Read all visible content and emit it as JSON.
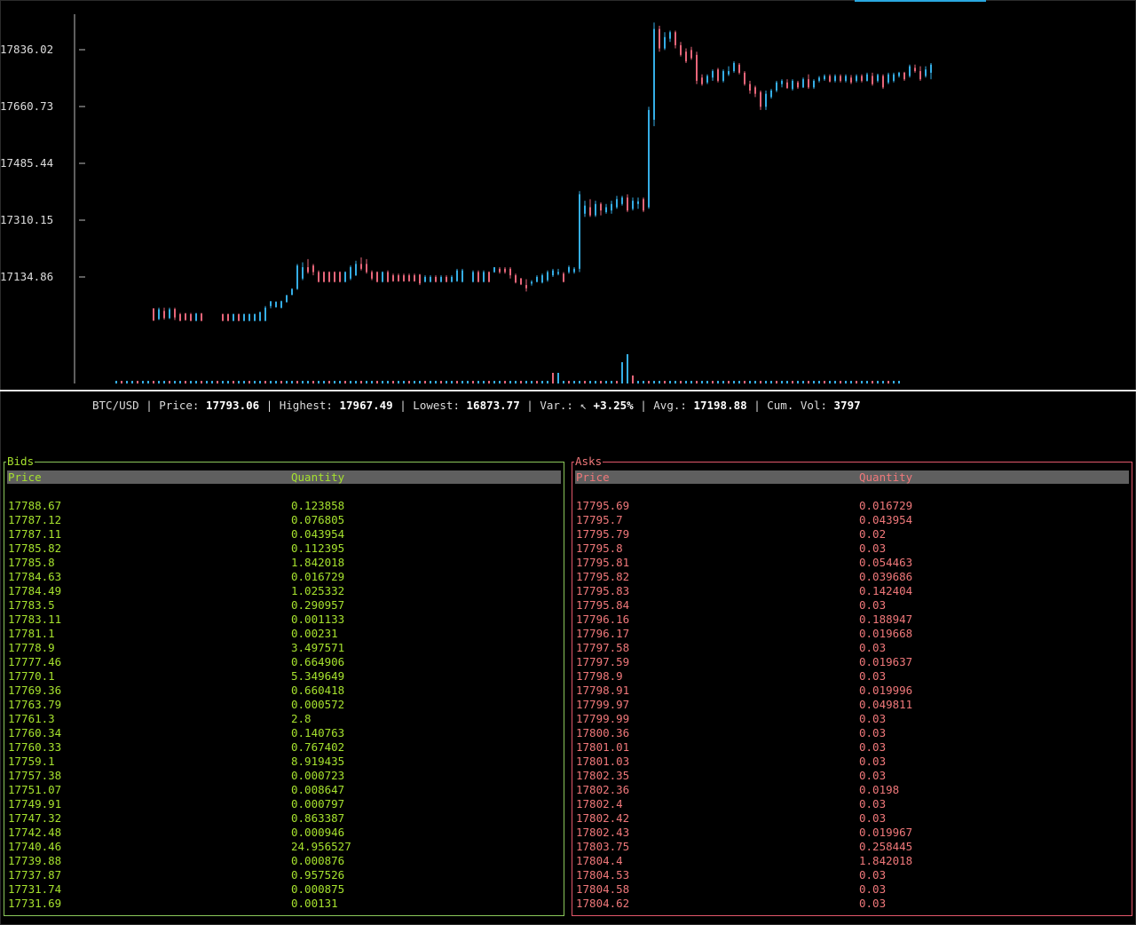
{
  "chart_data": {
    "type": "candlestick",
    "y_ticks": [
      "17836.02",
      "17660.73",
      "17485.44",
      "17310.15",
      "17134.86"
    ],
    "y_tick_values": [
      17836.02,
      17660.73,
      17485.44,
      17310.15,
      17134.86
    ],
    "colors": {
      "up": "#35aee6",
      "down": "#e8667a"
    },
    "candles": [
      {
        "o": 17038,
        "h": 17038,
        "c": 17000,
        "l": 17000
      },
      {
        "o": 17005,
        "h": 17040,
        "c": 17035,
        "l": 17002
      },
      {
        "o": 17030,
        "h": 17040,
        "c": 17008,
        "l": 17003
      },
      {
        "o": 17008,
        "h": 17040,
        "c": 17035,
        "l": 17005
      },
      {
        "o": 17036,
        "h": 17040,
        "c": 17010,
        "l": 17002
      },
      {
        "o": 17020,
        "h": 17024,
        "c": 17000,
        "l": 16998
      },
      {
        "o": 17022,
        "h": 17024,
        "c": 17002,
        "l": 17000
      },
      {
        "o": 17020,
        "h": 17024,
        "c": 17000,
        "l": 16998
      },
      {
        "o": 17000,
        "h": 17024,
        "c": 17022,
        "l": 16998
      },
      {
        "o": 17022,
        "h": 17024,
        "c": 17000,
        "l": 16998
      },
      {
        "o": null
      },
      {
        "o": null
      },
      {
        "o": null
      },
      {
        "o": 17020,
        "h": 17022,
        "c": 17000,
        "l": 16998
      },
      {
        "o": 17020,
        "h": 17022,
        "c": 17000,
        "l": 16998
      },
      {
        "o": 17000,
        "h": 17022,
        "c": 17020,
        "l": 16998
      },
      {
        "o": 17020,
        "h": 17022,
        "c": 17000,
        "l": 16998
      },
      {
        "o": 17000,
        "h": 17022,
        "c": 17020,
        "l": 16998
      },
      {
        "o": 17000,
        "h": 17022,
        "c": 17020,
        "l": 16998
      },
      {
        "o": 17000,
        "h": 17022,
        "c": 17020,
        "l": 16998
      },
      {
        "o": 17000,
        "h": 17028,
        "c": 17026,
        "l": 16998
      },
      {
        "o": 17000,
        "h": 17045,
        "c": 17040,
        "l": 16998
      },
      {
        "o": 17045,
        "h": 17060,
        "c": 17060,
        "l": 17038
      },
      {
        "o": 17042,
        "h": 17060,
        "c": 17058,
        "l": 17040
      },
      {
        "o": 17040,
        "h": 17062,
        "c": 17060,
        "l": 17038
      },
      {
        "o": 17058,
        "h": 17080,
        "c": 17078,
        "l": 17055
      },
      {
        "o": 17080,
        "h": 17100,
        "c": 17098,
        "l": 17078
      },
      {
        "o": 17098,
        "h": 17175,
        "c": 17170,
        "l": 17095
      },
      {
        "o": 17130,
        "h": 17180,
        "c": 17165,
        "l": 17125
      },
      {
        "o": 17165,
        "h": 17190,
        "c": 17150,
        "l": 17145
      },
      {
        "o": 17170,
        "h": 17175,
        "c": 17150,
        "l": 17140
      },
      {
        "o": 17150,
        "h": 17155,
        "c": 17120,
        "l": 17118
      },
      {
        "o": 17150,
        "h": 17152,
        "c": 17120,
        "l": 17118
      },
      {
        "o": 17150,
        "h": 17152,
        "c": 17120,
        "l": 17118
      },
      {
        "o": 17150,
        "h": 17152,
        "c": 17120,
        "l": 17118
      },
      {
        "o": 17150,
        "h": 17152,
        "c": 17120,
        "l": 17118
      },
      {
        "o": 17120,
        "h": 17152,
        "c": 17150,
        "l": 17118
      },
      {
        "o": 17130,
        "h": 17170,
        "c": 17165,
        "l": 17125
      },
      {
        "o": 17140,
        "h": 17185,
        "c": 17175,
        "l": 17138
      },
      {
        "o": 17175,
        "h": 17195,
        "c": 17160,
        "l": 17155
      },
      {
        "o": 17175,
        "h": 17190,
        "c": 17150,
        "l": 17145
      },
      {
        "o": 17150,
        "h": 17155,
        "c": 17130,
        "l": 17125
      },
      {
        "o": 17150,
        "h": 17152,
        "c": 17120,
        "l": 17118
      },
      {
        "o": 17120,
        "h": 17152,
        "c": 17150,
        "l": 17118
      },
      {
        "o": 17150,
        "h": 17155,
        "c": 17120,
        "l": 17118
      },
      {
        "o": 17140,
        "h": 17145,
        "c": 17122,
        "l": 17120
      },
      {
        "o": 17140,
        "h": 17145,
        "c": 17122,
        "l": 17120
      },
      {
        "o": 17140,
        "h": 17145,
        "c": 17122,
        "l": 17120
      },
      {
        "o": 17140,
        "h": 17145,
        "c": 17122,
        "l": 17120
      },
      {
        "o": 17140,
        "h": 17145,
        "c": 17122,
        "l": 17120
      },
      {
        "o": 17142,
        "h": 17144,
        "c": 17115,
        "l": 17110
      },
      {
        "o": 17120,
        "h": 17140,
        "c": 17135,
        "l": 17118
      },
      {
        "o": 17120,
        "h": 17140,
        "c": 17135,
        "l": 17118
      },
      {
        "o": 17135,
        "h": 17140,
        "c": 17120,
        "l": 17118
      },
      {
        "o": 17120,
        "h": 17140,
        "c": 17135,
        "l": 17118
      },
      {
        "o": 17135,
        "h": 17140,
        "c": 17120,
        "l": 17118
      },
      {
        "o": 17120,
        "h": 17140,
        "c": 17135,
        "l": 17118
      },
      {
        "o": 17122,
        "h": 17160,
        "c": 17155,
        "l": 17120
      },
      {
        "o": 17120,
        "h": 17160,
        "c": 17155,
        "l": 17118
      },
      {
        "o": null
      },
      {
        "o": 17120,
        "h": 17155,
        "c": 17150,
        "l": 17118
      },
      {
        "o": 17150,
        "h": 17155,
        "c": 17120,
        "l": 17118
      },
      {
        "o": 17120,
        "h": 17155,
        "c": 17150,
        "l": 17118
      },
      {
        "o": 17150,
        "h": 17152,
        "c": 17120,
        "l": 17118
      },
      {
        "o": 17150,
        "h": 17160,
        "c": 17165,
        "l": 17148
      },
      {
        "o": 17160,
        "h": 17165,
        "c": 17150,
        "l": 17145
      },
      {
        "o": 17160,
        "h": 17165,
        "c": 17150,
        "l": 17145
      },
      {
        "o": 17160,
        "h": 17165,
        "c": 17140,
        "l": 17130
      },
      {
        "o": 17140,
        "h": 17145,
        "c": 17118,
        "l": 17115
      },
      {
        "o": 17130,
        "h": 17132,
        "c": 17112,
        "l": 17110
      },
      {
        "o": 17110,
        "h": 17128,
        "c": 17100,
        "l": 17090
      },
      {
        "o": 17115,
        "h": 17125,
        "c": 17120,
        "l": 17108
      },
      {
        "o": 17120,
        "h": 17140,
        "c": 17135,
        "l": 17118
      },
      {
        "o": 17118,
        "h": 17145,
        "c": 17140,
        "l": 17115
      },
      {
        "o": 17125,
        "h": 17155,
        "c": 17150,
        "l": 17120
      },
      {
        "o": 17140,
        "h": 17160,
        "c": 17155,
        "l": 17135
      },
      {
        "o": 17145,
        "h": 17160,
        "c": 17150,
        "l": 17140
      },
      {
        "o": 17145,
        "h": 17150,
        "c": 17120,
        "l": 17118
      },
      {
        "o": 17150,
        "h": 17170,
        "c": 17165,
        "l": 17145
      },
      {
        "o": 17150,
        "h": 17165,
        "c": 17160,
        "l": 17145
      },
      {
        "o": 17160,
        "h": 17400,
        "c": 17390,
        "l": 17150
      },
      {
        "o": 17330,
        "h": 17370,
        "c": 17355,
        "l": 17320
      },
      {
        "o": 17350,
        "h": 17375,
        "c": 17325,
        "l": 17320
      },
      {
        "o": 17325,
        "h": 17370,
        "c": 17360,
        "l": 17320
      },
      {
        "o": 17360,
        "h": 17365,
        "c": 17340,
        "l": 17325
      },
      {
        "o": 17335,
        "h": 17360,
        "c": 17350,
        "l": 17330
      },
      {
        "o": 17340,
        "h": 17370,
        "c": 17360,
        "l": 17330
      },
      {
        "o": 17350,
        "h": 17385,
        "c": 17375,
        "l": 17345
      },
      {
        "o": 17360,
        "h": 17385,
        "c": 17380,
        "l": 17355
      },
      {
        "o": 17380,
        "h": 17390,
        "c": 17340,
        "l": 17335
      },
      {
        "o": 17345,
        "h": 17380,
        "c": 17370,
        "l": 17340
      },
      {
        "o": 17360,
        "h": 17380,
        "c": 17368,
        "l": 17345
      },
      {
        "o": 17375,
        "h": 17380,
        "c": 17340,
        "l": 17335
      },
      {
        "o": 17350,
        "h": 17660,
        "c": 17650,
        "l": 17345
      },
      {
        "o": 17620,
        "h": 17920,
        "c": 17900,
        "l": 17600
      },
      {
        "o": 17900,
        "h": 17910,
        "c": 17840,
        "l": 17830
      },
      {
        "o": 17840,
        "h": 17890,
        "c": 17875,
        "l": 17835
      },
      {
        "o": 17870,
        "h": 17895,
        "c": 17890,
        "l": 17860
      },
      {
        "o": 17890,
        "h": 17895,
        "c": 17850,
        "l": 17840
      },
      {
        "o": 17850,
        "h": 17860,
        "c": 17820,
        "l": 17815
      },
      {
        "o": 17830,
        "h": 17840,
        "c": 17800,
        "l": 17795
      },
      {
        "o": 17835,
        "h": 17845,
        "c": 17810,
        "l": 17805
      },
      {
        "o": 17820,
        "h": 17830,
        "c": 17740,
        "l": 17730
      },
      {
        "o": 17750,
        "h": 17760,
        "c": 17730,
        "l": 17725
      },
      {
        "o": 17735,
        "h": 17760,
        "c": 17755,
        "l": 17730
      },
      {
        "o": 17750,
        "h": 17775,
        "c": 17770,
        "l": 17740
      },
      {
        "o": 17775,
        "h": 17780,
        "c": 17740,
        "l": 17735
      },
      {
        "o": 17740,
        "h": 17775,
        "c": 17770,
        "l": 17735
      },
      {
        "o": 17760,
        "h": 17785,
        "c": 17770,
        "l": 17755
      },
      {
        "o": 17770,
        "h": 17800,
        "c": 17795,
        "l": 17765
      },
      {
        "o": 17790,
        "h": 17795,
        "c": 17765,
        "l": 17760
      },
      {
        "o": 17765,
        "h": 17770,
        "c": 17730,
        "l": 17725
      },
      {
        "o": 17730,
        "h": 17740,
        "c": 17710,
        "l": 17700
      },
      {
        "o": 17720,
        "h": 17725,
        "c": 17700,
        "l": 17690
      },
      {
        "o": 17705,
        "h": 17710,
        "c": 17660,
        "l": 17650
      },
      {
        "o": 17660,
        "h": 17710,
        "c": 17700,
        "l": 17650
      },
      {
        "o": 17690,
        "h": 17715,
        "c": 17710,
        "l": 17685
      },
      {
        "o": 17710,
        "h": 17740,
        "c": 17735,
        "l": 17705
      },
      {
        "o": 17730,
        "h": 17745,
        "c": 17740,
        "l": 17720
      },
      {
        "o": 17735,
        "h": 17745,
        "c": 17718,
        "l": 17715
      },
      {
        "o": 17715,
        "h": 17745,
        "c": 17740,
        "l": 17710
      },
      {
        "o": 17735,
        "h": 17740,
        "c": 17720,
        "l": 17715
      },
      {
        "o": 17720,
        "h": 17750,
        "c": 17745,
        "l": 17718
      },
      {
        "o": 17745,
        "h": 17760,
        "c": 17720,
        "l": 17715
      },
      {
        "o": 17720,
        "h": 17745,
        "c": 17740,
        "l": 17715
      },
      {
        "o": 17740,
        "h": 17755,
        "c": 17750,
        "l": 17735
      },
      {
        "o": 17745,
        "h": 17760,
        "c": 17755,
        "l": 17740
      },
      {
        "o": 17755,
        "h": 17760,
        "c": 17738,
        "l": 17735
      },
      {
        "o": 17740,
        "h": 17760,
        "c": 17755,
        "l": 17735
      },
      {
        "o": 17755,
        "h": 17760,
        "c": 17740,
        "l": 17735
      },
      {
        "o": 17740,
        "h": 17760,
        "c": 17755,
        "l": 17735
      },
      {
        "o": 17750,
        "h": 17758,
        "c": 17735,
        "l": 17730
      },
      {
        "o": 17740,
        "h": 17760,
        "c": 17755,
        "l": 17735
      },
      {
        "o": 17755,
        "h": 17760,
        "c": 17740,
        "l": 17735
      },
      {
        "o": 17740,
        "h": 17765,
        "c": 17760,
        "l": 17738
      },
      {
        "o": 17755,
        "h": 17765,
        "c": 17730,
        "l": 17725
      },
      {
        "o": 17740,
        "h": 17762,
        "c": 17758,
        "l": 17735
      },
      {
        "o": 17755,
        "h": 17760,
        "c": 17720,
        "l": 17715
      },
      {
        "o": 17735,
        "h": 17765,
        "c": 17760,
        "l": 17730
      },
      {
        "o": 17740,
        "h": 17765,
        "c": 17760,
        "l": 17735
      },
      {
        "o": 17755,
        "h": 17768,
        "c": 17765,
        "l": 17750
      },
      {
        "o": 17765,
        "h": 17768,
        "c": 17745,
        "l": 17740
      },
      {
        "o": 17755,
        "h": 17790,
        "c": 17785,
        "l": 17750
      },
      {
        "o": 17780,
        "h": 17790,
        "c": 17770,
        "l": 17765
      },
      {
        "o": 17770,
        "h": 17785,
        "c": 17745,
        "l": 17740
      },
      {
        "o": 17755,
        "h": 17785,
        "c": 17775,
        "l": 17750
      },
      {
        "o": 17765,
        "h": 17795,
        "c": 17790,
        "l": 17745
      }
    ],
    "volumes": [
      0.5,
      0.5,
      0.5,
      0.5,
      0.5,
      0.5,
      0.5,
      0.5,
      0.5,
      0.5,
      0.5,
      0.5,
      0.5,
      0.5,
      0.5,
      0.5,
      0.5,
      0.5,
      0.5,
      0.5,
      0.5,
      0.5,
      0.5,
      0.5,
      0.5,
      0.5,
      0.5,
      0.5,
      0.5,
      0.5,
      0.5,
      0.5,
      0.5,
      0.5,
      0.5,
      0.5,
      0.5,
      0.5,
      0.5,
      0.5,
      0.5,
      0.5,
      0.5,
      0.5,
      0.5,
      0.5,
      0.5,
      0.5,
      0.5,
      0.5,
      0.5,
      0.5,
      0.5,
      0.5,
      0.5,
      0.5,
      0.5,
      0.5,
      0.5,
      0.5,
      0.5,
      0.5,
      0.5,
      0.5,
      0.5,
      0.5,
      0.5,
      0.5,
      0.5,
      0.5,
      0.5,
      0.5,
      0.5,
      0.5,
      0.5,
      0.5,
      0.5,
      0.5,
      0.5,
      0.5,
      0.5,
      0.5,
      2,
      2,
      0.5,
      0.5,
      0.5,
      0.5,
      0.5,
      0.5,
      0.5,
      0.5,
      0.5,
      0.5,
      0.5,
      4,
      5.5,
      1.5,
      0.5,
      0.5,
      0.5,
      0.5,
      0.5,
      0.5,
      0.5,
      0.5,
      0.5,
      0.5,
      0.5,
      0.5,
      0.5,
      0.5,
      0.5,
      0.5,
      0.5,
      0.5,
      0.5,
      0.5,
      0.5,
      0.5,
      0.5,
      0.5,
      0.5,
      0.5,
      0.5,
      0.5,
      0.5,
      0.5,
      0.5,
      0.5,
      0.5,
      0.5,
      0.5,
      0.5,
      0.5,
      0.5,
      0.5,
      0.5,
      0.5,
      0.5,
      0.5,
      0.5,
      0.5,
      0.5,
      0.5,
      0.5,
      0.5,
      0.5
    ]
  },
  "status": {
    "pair": "BTC/USD",
    "price_label": "Price:",
    "price": "17793.06",
    "highest_label": "Highest:",
    "highest": "17967.49",
    "lowest_label": "Lowest:",
    "lowest": "16873.77",
    "var_label": "Var.:",
    "var_arrow": "↖",
    "var": "+3.25%",
    "avg_label": "Avg.:",
    "avg": "17198.88",
    "cum_vol_label": "Cum. Vol:",
    "cum_vol": "3797"
  },
  "bids": {
    "title": "Bids",
    "col_price": "Price",
    "col_qty": "Quantity",
    "color": "#a6e22e",
    "rows": [
      [
        "17788.67",
        "0.123858"
      ],
      [
        "17787.12",
        "0.076805"
      ],
      [
        "17787.11",
        "0.043954"
      ],
      [
        "17785.82",
        "0.112395"
      ],
      [
        "17785.8",
        "1.842018"
      ],
      [
        "17784.63",
        "0.016729"
      ],
      [
        "17784.49",
        "1.025332"
      ],
      [
        "17783.5",
        "0.290957"
      ],
      [
        "17783.11",
        "0.001133"
      ],
      [
        "17781.1",
        "0.00231"
      ],
      [
        "17778.9",
        "3.497571"
      ],
      [
        "17777.46",
        "0.664906"
      ],
      [
        "17770.1",
        "5.349649"
      ],
      [
        "17769.36",
        "0.660418"
      ],
      [
        "17763.79",
        "0.000572"
      ],
      [
        "17761.3",
        "2.8"
      ],
      [
        "17760.34",
        "0.140763"
      ],
      [
        "17760.33",
        "0.767402"
      ],
      [
        "17759.1",
        "8.919435"
      ],
      [
        "17757.38",
        "0.000723"
      ],
      [
        "17751.07",
        "0.008647"
      ],
      [
        "17749.91",
        "0.000797"
      ],
      [
        "17747.32",
        "0.863387"
      ],
      [
        "17742.48",
        "0.000946"
      ],
      [
        "17740.46",
        "24.956527"
      ],
      [
        "17739.88",
        "0.000876"
      ],
      [
        "17737.87",
        "0.957526"
      ],
      [
        "17731.74",
        "0.000875"
      ],
      [
        "17731.69",
        "0.00131"
      ]
    ]
  },
  "asks": {
    "title": "Asks",
    "col_price": "Price",
    "col_qty": "Quantity",
    "color": "#f0787a",
    "rows": [
      [
        "17795.69",
        "0.016729"
      ],
      [
        "17795.7",
        "0.043954"
      ],
      [
        "17795.79",
        "0.02"
      ],
      [
        "17795.8",
        "0.03"
      ],
      [
        "17795.81",
        "0.054463"
      ],
      [
        "17795.82",
        "0.039686"
      ],
      [
        "17795.83",
        "0.142404"
      ],
      [
        "17795.84",
        "0.03"
      ],
      [
        "17796.16",
        "0.188947"
      ],
      [
        "17796.17",
        "0.019668"
      ],
      [
        "17797.58",
        "0.03"
      ],
      [
        "17797.59",
        "0.019637"
      ],
      [
        "17798.9",
        "0.03"
      ],
      [
        "17798.91",
        "0.019996"
      ],
      [
        "17799.97",
        "0.049811"
      ],
      [
        "17799.99",
        "0.03"
      ],
      [
        "17800.36",
        "0.03"
      ],
      [
        "17801.01",
        "0.03"
      ],
      [
        "17801.03",
        "0.03"
      ],
      [
        "17802.35",
        "0.03"
      ],
      [
        "17802.36",
        "0.0198"
      ],
      [
        "17802.4",
        "0.03"
      ],
      [
        "17802.42",
        "0.03"
      ],
      [
        "17802.43",
        "0.019967"
      ],
      [
        "17803.75",
        "0.258445"
      ],
      [
        "17804.4",
        "1.842018"
      ],
      [
        "17804.53",
        "0.03"
      ],
      [
        "17804.58",
        "0.03"
      ],
      [
        "17804.62",
        "0.03"
      ]
    ]
  }
}
